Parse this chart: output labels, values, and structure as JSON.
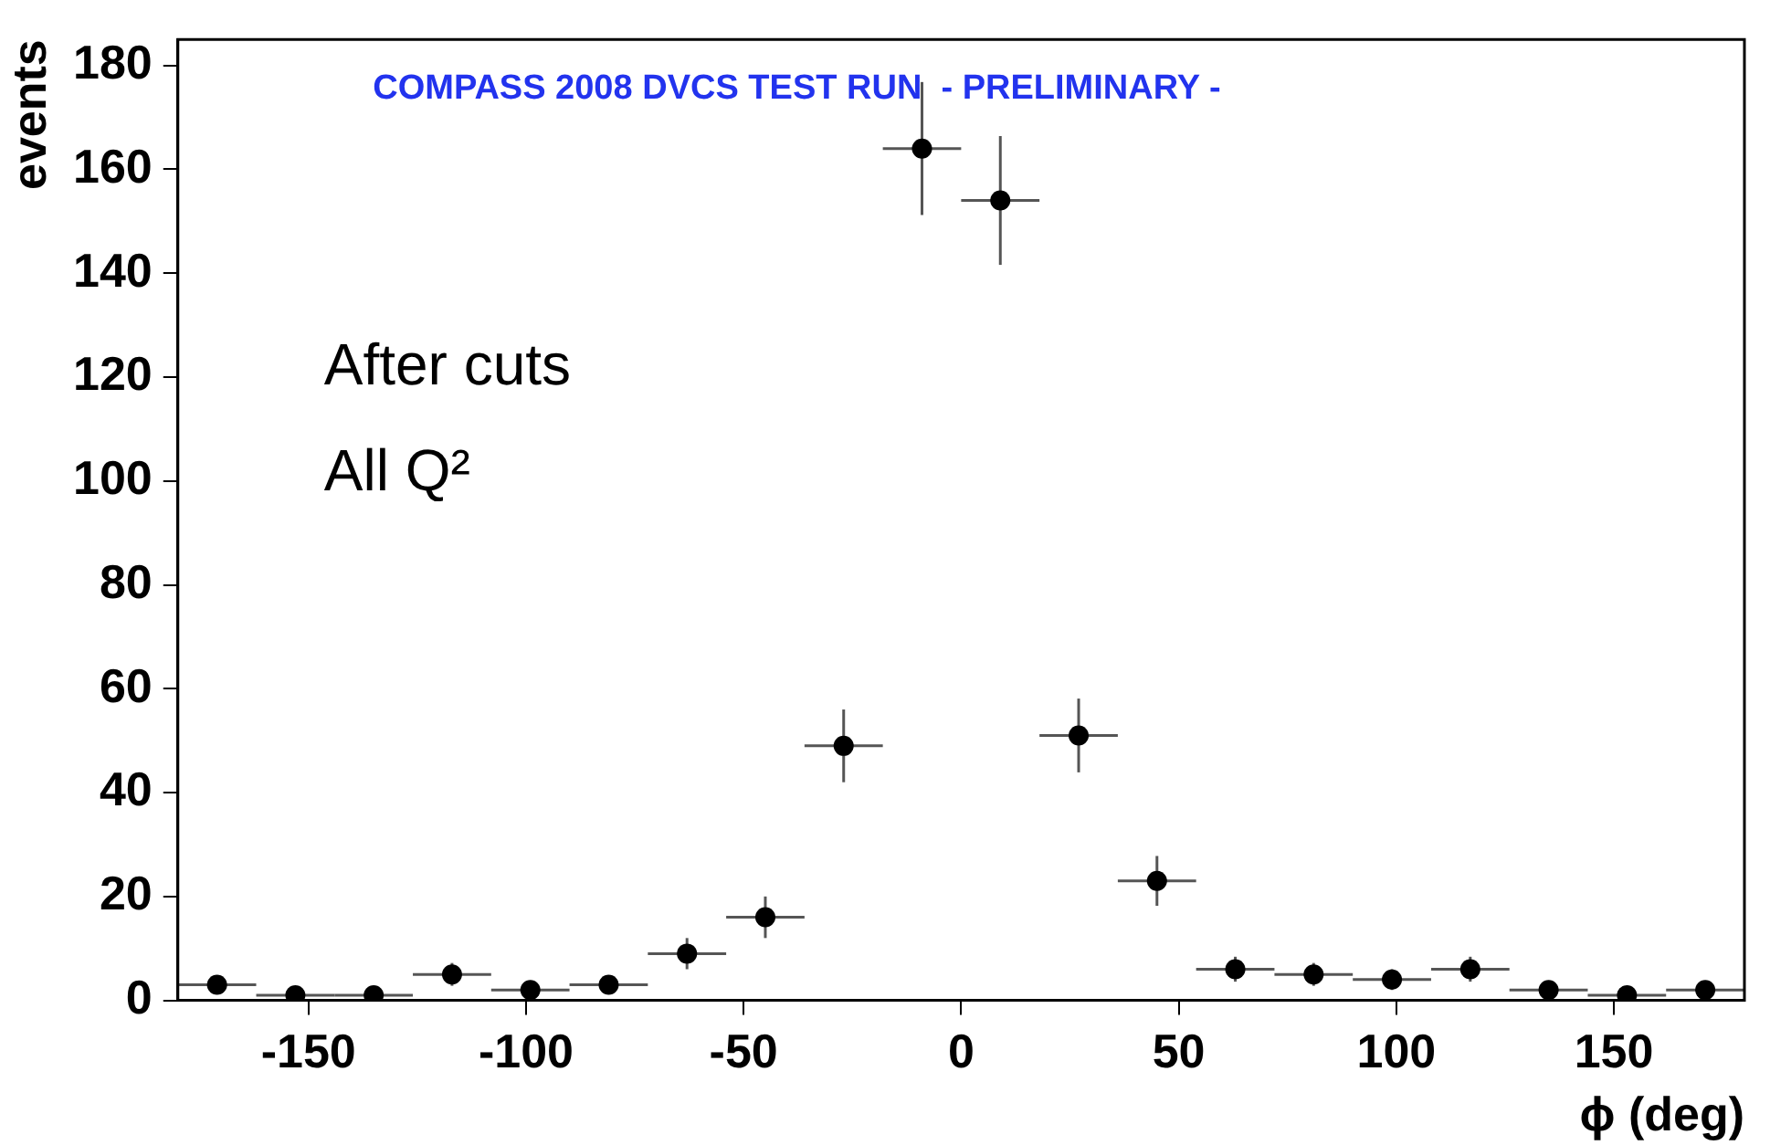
{
  "chart_data": {
    "type": "scatter",
    "title": "COMPASS 2008 DVCS TEST RUN  - PRELIMINARY -",
    "xlabel": "ϕ (deg)",
    "ylabel": "events",
    "annotations": [
      "After cuts",
      "All Q²"
    ],
    "x": [
      -171,
      -153,
      -135,
      -117,
      -99,
      -81,
      -63,
      -45,
      -27,
      -9,
      9,
      27,
      45,
      63,
      81,
      99,
      117,
      135,
      153,
      171
    ],
    "series": [
      {
        "color": "#000000",
        "values": [
          3,
          1,
          1,
          5,
          2,
          3,
          9,
          16,
          49,
          164,
          154,
          51,
          23,
          6,
          5,
          4,
          6,
          2,
          1,
          2
        ],
        "errors": [
          1.7,
          1,
          1,
          2.2,
          1.4,
          1.7,
          3,
          4,
          7,
          12.8,
          12.4,
          7.1,
          4.8,
          2.4,
          2.2,
          2,
          2.4,
          1.4,
          1,
          1.4
        ],
        "xerrors": [
          9,
          9,
          9,
          9,
          9,
          9,
          9,
          9,
          9,
          9,
          9,
          9,
          9,
          9,
          9,
          9,
          9,
          9,
          9,
          9
        ]
      }
    ],
    "xlim": [
      -180,
      180
    ],
    "xticks": [
      -150,
      -100,
      -50,
      0,
      50,
      100,
      150
    ],
    "ylim": [
      0,
      185
    ],
    "yticks": [
      0,
      20,
      40,
      60,
      80,
      100,
      120,
      140,
      160,
      180
    ],
    "grid": false,
    "legend": false,
    "marker": "circle"
  }
}
